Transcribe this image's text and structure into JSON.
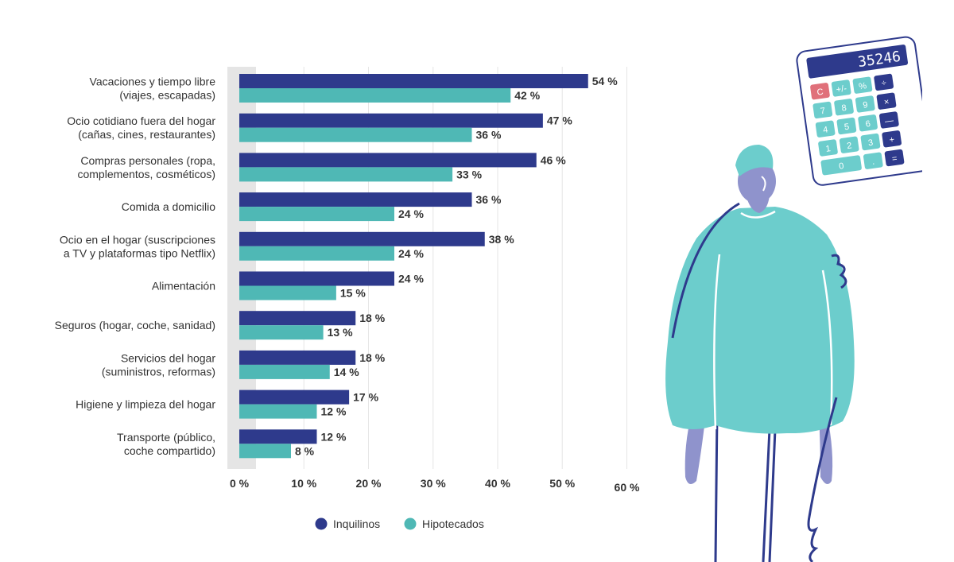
{
  "chart_data": {
    "type": "bar",
    "orientation": "horizontal",
    "title": "",
    "xlabel": "",
    "ylabel": "",
    "xlim": [
      0,
      60
    ],
    "grid": true,
    "legend_position": "bottom",
    "categories": [
      [
        "Vacaciones y tiempo libre",
        "(viajes, escapadas)"
      ],
      [
        "Ocio cotidiano fuera del hogar",
        "(cañas, cines, restaurantes)"
      ],
      [
        "Compras personales (ropa,",
        "complementos, cosméticos)"
      ],
      [
        "Comida a domicilio"
      ],
      [
        "Ocio en el hogar (suscripciones",
        "a TV y plataformas tipo Netflix)"
      ],
      [
        "Alimentación"
      ],
      [
        "Seguros (hogar, coche, sanidad)"
      ],
      [
        "Servicios del hogar",
        "(suministros, reformas)"
      ],
      [
        "Higiene y limpieza del hogar"
      ],
      [
        "Transporte (público,",
        "coche compartido)"
      ]
    ],
    "series": [
      {
        "name": "Inquilinos",
        "color": "#2e3a8c",
        "values": [
          54,
          47,
          46,
          36,
          38,
          24,
          18,
          18,
          17,
          12
        ]
      },
      {
        "name": "Hipotecados",
        "color": "#4fb8b5",
        "values": [
          42,
          36,
          33,
          24,
          24,
          15,
          13,
          14,
          12,
          8
        ]
      }
    ],
    "value_suffix": " %",
    "ticks": [
      "0 %",
      "10 %",
      "20 %",
      "30 %",
      "40 %",
      "50 %",
      "60 %"
    ]
  },
  "illustration": {
    "calculator_display": "35246",
    "calculator_keys": [
      "C",
      "+/-",
      "%",
      "÷",
      "7",
      "8",
      "9",
      "×",
      "4",
      "5",
      "6",
      "—",
      "1",
      "2",
      "3",
      "+",
      "0",
      ".",
      "="
    ]
  }
}
